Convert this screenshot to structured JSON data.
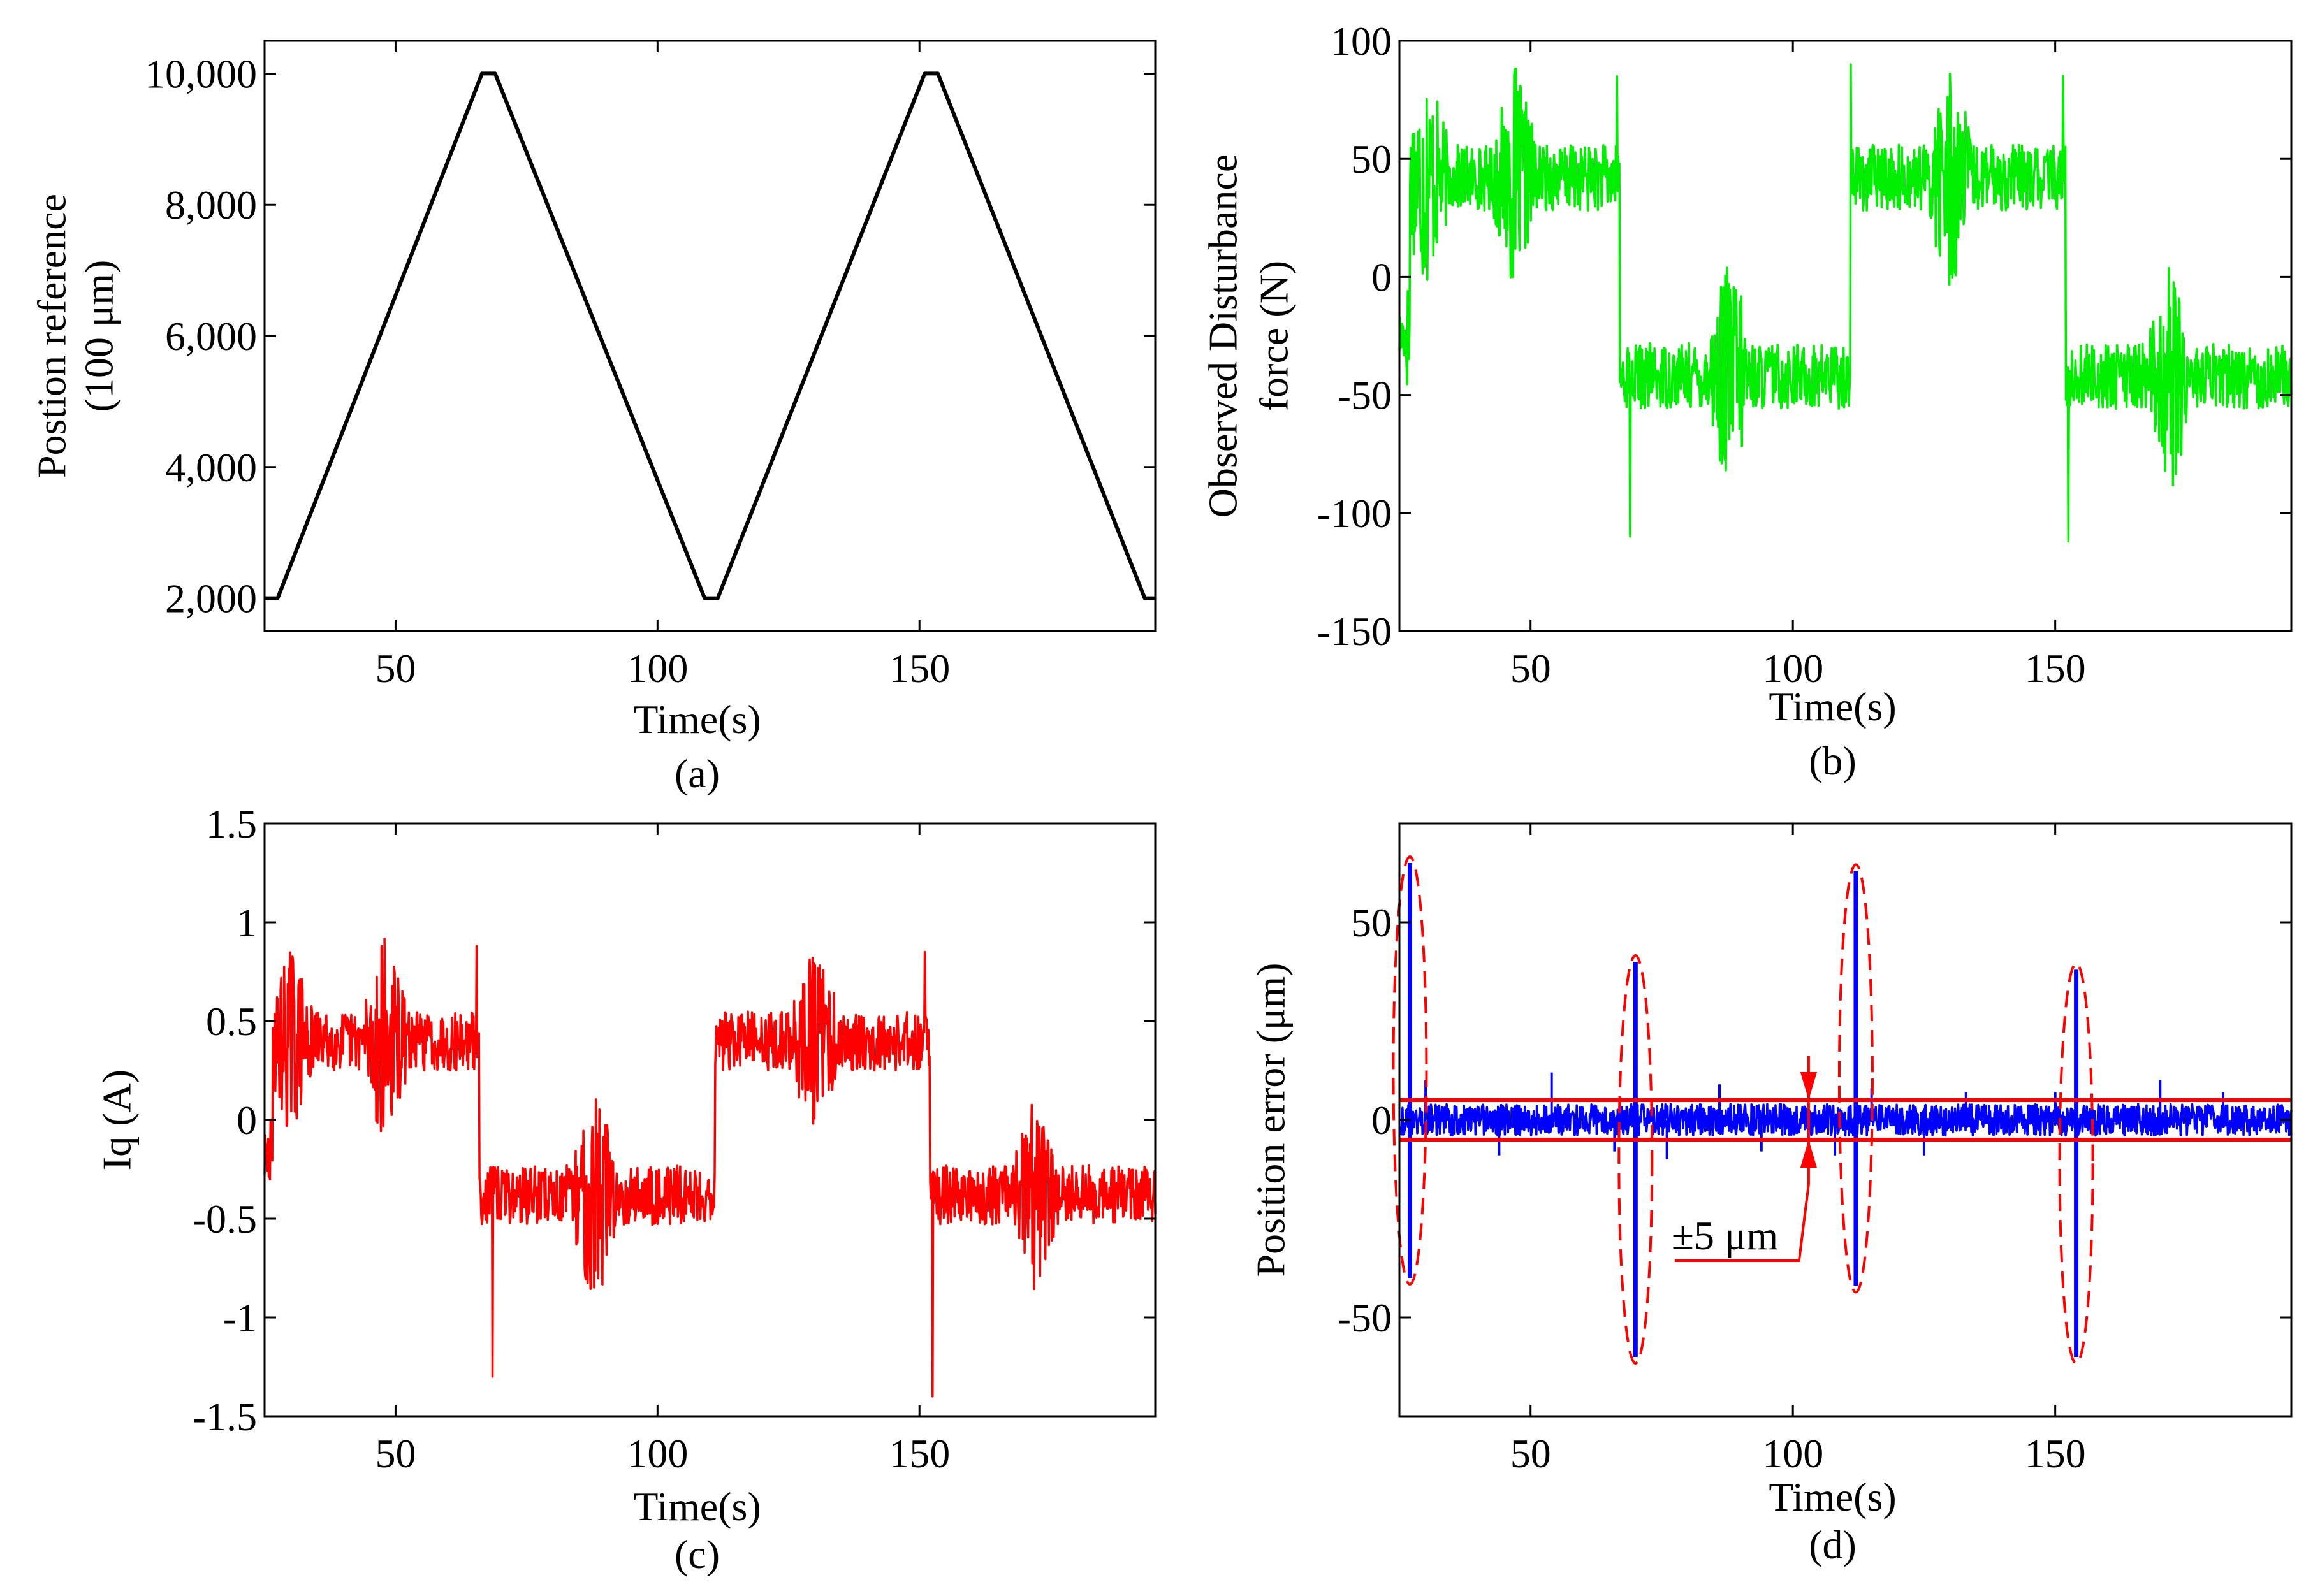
{
  "chart_data": [
    {
      "type": "line",
      "panel": "(a)",
      "xlabel": "Time(s)",
      "ylabel": "Postion reference",
      "ylabel2": "(100 μm)",
      "xlim": [
        25,
        195
      ],
      "ylim": [
        1500,
        10500
      ],
      "xticks": [
        50,
        100,
        150
      ],
      "xtick_labels": [
        "50",
        "100",
        "150"
      ],
      "yticks": [
        2000,
        4000,
        6000,
        8000,
        10000
      ],
      "ytick_labels": [
        "2,000",
        "4,000",
        "6,000",
        "8,000",
        "10,000"
      ],
      "color": "#000000",
      "series": [
        {
          "name": "Position reference",
          "x": [
            25,
            27.5,
            66.5,
            69,
            109,
            111.5,
            151,
            153.5,
            193,
            195
          ],
          "y": [
            2000,
            2000,
            10000,
            10000,
            2000,
            2000,
            10000,
            10000,
            2000,
            2000
          ]
        }
      ]
    },
    {
      "type": "line",
      "panel": "(b)",
      "xlabel": "Time(s)",
      "ylabel": "Observed Disturbance",
      "ylabel2": "force (N)",
      "xlim": [
        25,
        195
      ],
      "ylim": [
        -150,
        100
      ],
      "xticks": [
        50,
        100,
        150
      ],
      "xtick_labels": [
        "50",
        "100",
        "150"
      ],
      "yticks": [
        -150,
        -100,
        -50,
        0,
        50,
        100
      ],
      "ytick_labels": [
        "-150",
        "-100",
        "-50",
        "0",
        "50",
        "100"
      ],
      "color": "#00ee00",
      "series": [
        {
          "name": "Observed disturbance force",
          "segments": [
            {
              "from": 25,
              "to": 27,
              "level": -25,
              "amp": 12
            },
            {
              "from": 27,
              "to": 67,
              "level": 42,
              "amp": 14
            },
            {
              "from": 67,
              "to": 111,
              "level": -42,
              "amp": 14
            },
            {
              "from": 111,
              "to": 152,
              "level": 42,
              "amp": 14
            },
            {
              "from": 152,
              "to": 195,
              "level": -42,
              "amp": 14
            }
          ],
          "bursts": [
            {
              "center": 30,
              "width": 4,
              "amp": 50
            },
            {
              "center": 47,
              "width": 4,
              "amp": 48
            },
            {
              "center": 88,
              "width": 4,
              "amp": 52
            },
            {
              "center": 130,
              "width": 4,
              "amp": 50
            },
            {
              "center": 172,
              "width": 4,
              "amp": 50
            }
          ],
          "spikes": [
            {
              "x": 66.5,
              "y": 85
            },
            {
              "x": 69,
              "y": -110
            },
            {
              "x": 111,
              "y": 90
            },
            {
              "x": 152.5,
              "y": -112
            },
            {
              "x": 151.5,
              "y": 85
            }
          ],
          "seed": 17
        }
      ]
    },
    {
      "type": "line",
      "panel": "(c)",
      "xlabel": "Time(s)",
      "ylabel": "Iq (A)",
      "xlim": [
        25,
        195
      ],
      "ylim": [
        -1.5,
        1.5
      ],
      "xticks": [
        50,
        100,
        150
      ],
      "xtick_labels": [
        "50",
        "100",
        "150"
      ],
      "yticks": [
        -1.5,
        -1,
        -0.5,
        0,
        0.5,
        1,
        1.5
      ],
      "ytick_labels": [
        "-1.5",
        "-1",
        "-0.5",
        "0",
        "0.5",
        "1",
        "1.5"
      ],
      "color": "#ff0000",
      "series": [
        {
          "name": "Iq",
          "segments": [
            {
              "from": 25,
              "to": 26.5,
              "level": -0.2,
              "amp": 0.15
            },
            {
              "from": 26.5,
              "to": 66,
              "level": 0.4,
              "amp": 0.15
            },
            {
              "from": 66,
              "to": 111,
              "level": -0.38,
              "amp": 0.15
            },
            {
              "from": 111,
              "to": 152,
              "level": 0.4,
              "amp": 0.15
            },
            {
              "from": 152,
              "to": 195,
              "level": -0.38,
              "amp": 0.15
            }
          ],
          "bursts": [
            {
              "center": 30,
              "width": 4,
              "amp": 0.5
            },
            {
              "center": 48,
              "width": 4,
              "amp": 0.55
            },
            {
              "center": 88,
              "width": 4,
              "amp": 0.6
            },
            {
              "center": 130,
              "width": 4,
              "amp": 0.55
            },
            {
              "center": 172,
              "width": 4,
              "amp": 0.5
            }
          ],
          "spikes": [
            {
              "x": 68.5,
              "y": -1.3
            },
            {
              "x": 152.5,
              "y": -1.4
            },
            {
              "x": 65.5,
              "y": 0.88
            },
            {
              "x": 151,
              "y": 0.85
            }
          ],
          "seed": 29
        }
      ]
    },
    {
      "type": "line",
      "panel": "(d)",
      "xlabel": "Time(s)",
      "ylabel": "Position error (μm)",
      "xlim": [
        25,
        195
      ],
      "ylim": [
        -75,
        75
      ],
      "xticks": [
        50,
        100,
        150
      ],
      "xtick_labels": [
        "50",
        "100",
        "150"
      ],
      "yticks": [
        -50,
        0,
        50
      ],
      "ytick_labels": [
        "-50",
        "0",
        "50"
      ],
      "color": "#0000ff",
      "band": 5,
      "band_color": "#ff0000",
      "annotation": "±5 μm",
      "annotation_x": 103,
      "series": [
        {
          "name": "Position error",
          "noise_amp": 4,
          "spikes": [
            {
              "x": 27,
              "up": 65,
              "down": -40
            },
            {
              "x": 70,
              "up": 40,
              "down": -60
            },
            {
              "x": 112,
              "up": 63,
              "down": -42
            },
            {
              "x": 154,
              "up": 38,
              "down": -60
            }
          ],
          "small_spikes": [
            {
              "x": 30,
              "y": 10
            },
            {
              "x": 44,
              "y": -9
            },
            {
              "x": 54,
              "y": 12
            },
            {
              "x": 66,
              "y": -8
            },
            {
              "x": 76,
              "y": -10
            },
            {
              "x": 86,
              "y": 9
            },
            {
              "x": 94,
              "y": -8
            },
            {
              "x": 108,
              "y": -9
            },
            {
              "x": 115,
              "y": 8
            },
            {
              "x": 125,
              "y": -9
            },
            {
              "x": 133,
              "y": 7
            },
            {
              "x": 150,
              "y": 7
            },
            {
              "x": 170,
              "y": 10
            },
            {
              "x": 182,
              "y": 7
            }
          ],
          "seed": 43
        }
      ]
    }
  ]
}
